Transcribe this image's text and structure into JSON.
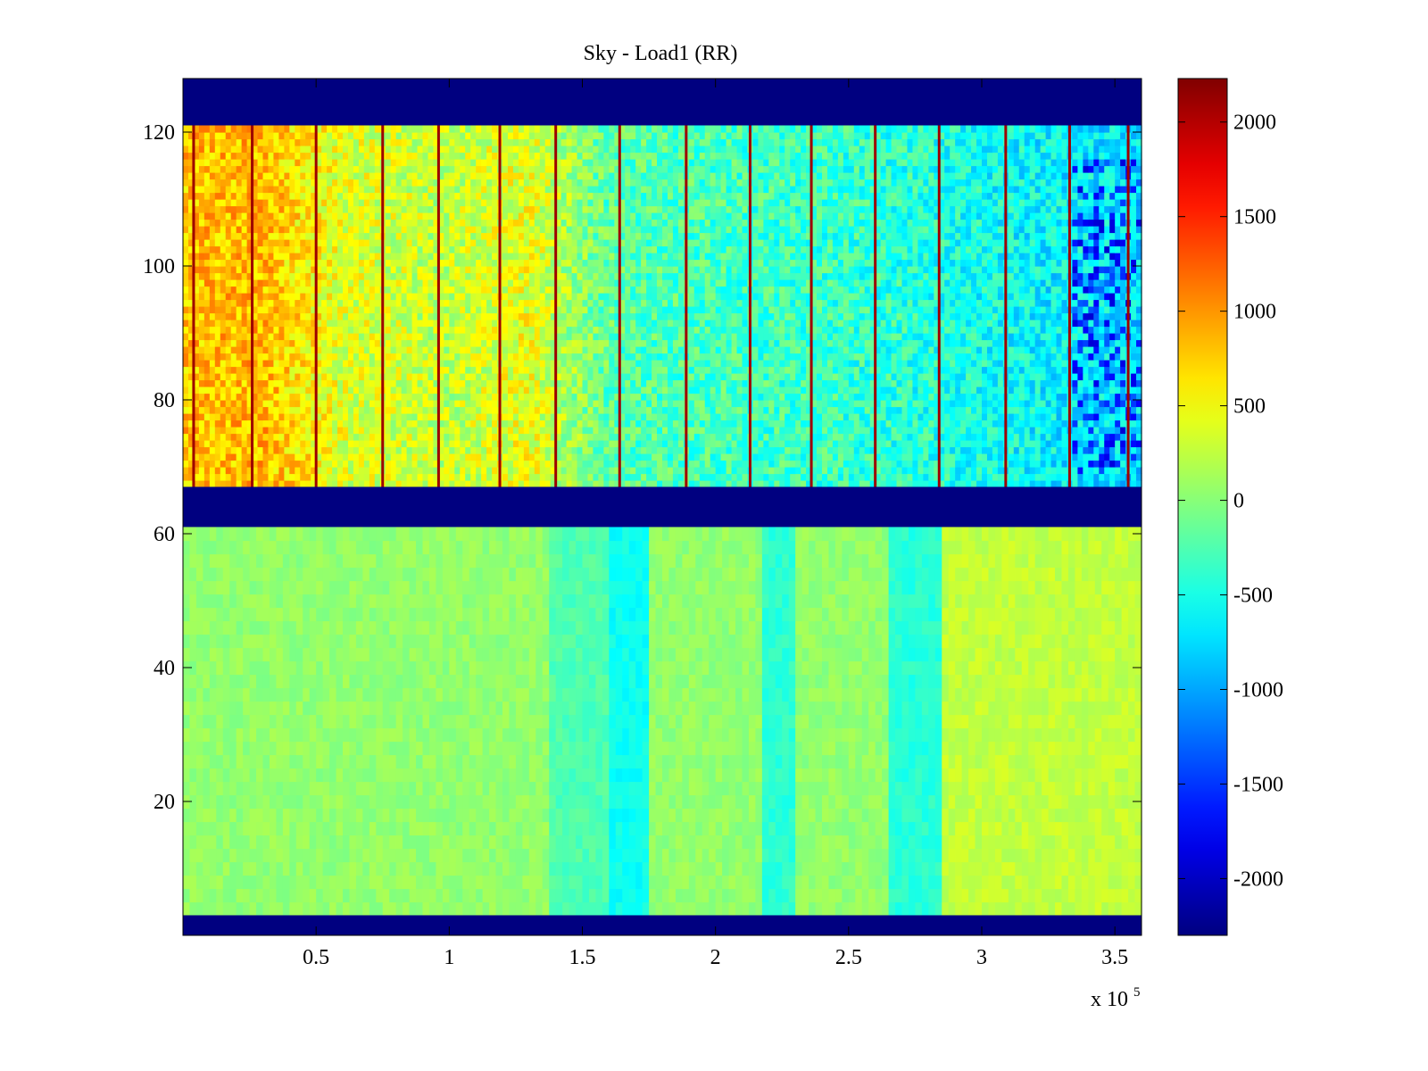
{
  "chart_data": {
    "type": "heatmap",
    "title": "Sky - Load1 (RR)",
    "xlabel": "",
    "ylabel": "",
    "x_multiplier_label": "x 10",
    "x_multiplier_exp": "5",
    "xlim": [
      0,
      3.6
    ],
    "ylim": [
      0,
      128
    ],
    "x_ticks": [
      0.5,
      1,
      1.5,
      2,
      2.5,
      3,
      3.5
    ],
    "x_tick_labels": [
      "0.5",
      "1",
      "1.5",
      "2",
      "2.5",
      "3",
      "3.5"
    ],
    "y_ticks": [
      20,
      40,
      60,
      80,
      100,
      120
    ],
    "y_tick_labels": [
      "20",
      "40",
      "60",
      "80",
      "100",
      "120"
    ],
    "colorbar": {
      "colormap": "jet",
      "range": [
        -2300,
        2230
      ],
      "ticks": [
        -2000,
        -1500,
        -1000,
        -500,
        0,
        500,
        1000,
        1500,
        2000
      ],
      "tick_labels": [
        "-2000",
        "-1500",
        "-1000",
        "-500",
        "0",
        "500",
        "1000",
        "1500",
        "2000"
      ]
    },
    "masked_rows": [
      [
        0,
        3
      ],
      [
        61,
        67
      ],
      [
        121,
        128
      ]
    ],
    "top_block": {
      "rows": [
        67,
        121
      ],
      "trend_x": [
        0,
        0.3,
        0.6,
        1.0,
        1.3,
        1.6,
        2.0,
        2.4,
        2.8,
        3.2,
        3.6
      ],
      "trend_values": [
        800,
        850,
        400,
        250,
        450,
        -200,
        -300,
        -350,
        -450,
        -600,
        -750
      ],
      "spike_x": [
        0.04,
        0.26,
        0.5,
        0.75,
        0.96,
        1.19,
        1.4,
        1.64,
        1.89,
        2.13,
        2.36,
        2.6,
        2.84,
        3.09,
        3.33,
        3.55
      ],
      "spike_value": 2100
    },
    "bottom_block": {
      "rows": [
        3,
        61
      ],
      "base_value": 50,
      "cool_bands": [
        {
          "x": [
            1.37,
            1.6
          ],
          "value": -250
        },
        {
          "x": [
            1.6,
            1.75
          ],
          "value": -550
        },
        {
          "x": [
            2.18,
            2.3
          ],
          "value": -400
        },
        {
          "x": [
            2.65,
            2.86
          ],
          "value": -420
        }
      ],
      "warm_region": {
        "x": [
          2.86,
          3.6
        ],
        "value": 260
      }
    }
  }
}
